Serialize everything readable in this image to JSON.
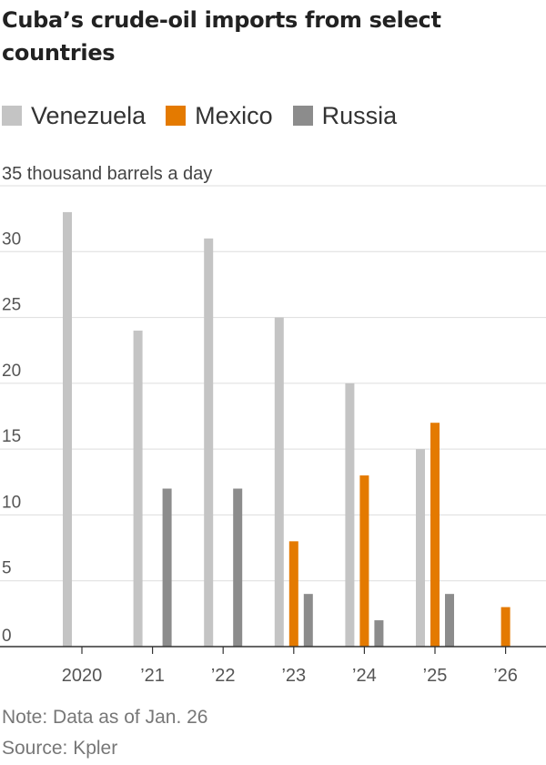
{
  "chart_data": {
    "type": "bar",
    "title": "Cuba’s crude-oil imports from select countries",
    "unit_label": "thousand barrels a day",
    "categories": [
      "2020",
      "’21",
      "’22",
      "’23",
      "’24",
      "’25",
      "’26"
    ],
    "series": [
      {
        "name": "Venezuela",
        "color": "#c4c4c4",
        "values": [
          33,
          24,
          31,
          25,
          20,
          15,
          0
        ]
      },
      {
        "name": "Mexico",
        "color": "#e47a00",
        "values": [
          0,
          0,
          0,
          8,
          13,
          17,
          3
        ]
      },
      {
        "name": "Russia",
        "color": "#8c8c8c",
        "values": [
          0,
          12,
          12,
          4,
          2,
          4,
          0
        ]
      }
    ],
    "ylim": [
      0,
      35
    ],
    "yticks": [
      0,
      5,
      10,
      15,
      20,
      25,
      30,
      35
    ],
    "grid": true,
    "legend_position": "top-left"
  },
  "notes": {
    "note": "Note: Data as of Jan. 26",
    "source": "Source: Kpler"
  }
}
